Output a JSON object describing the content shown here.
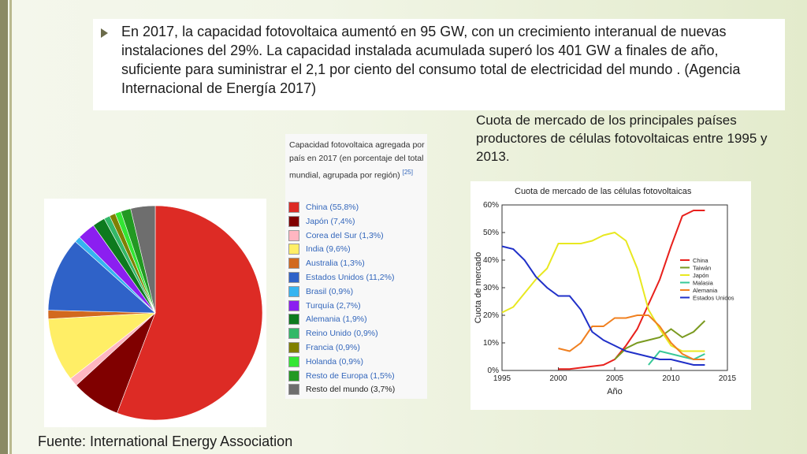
{
  "slide": {
    "bullet_text": "En 2017, la capacidad fotovoltaica aumentó en 95 GW, con un crecimiento interanual de nuevas instalaciones del 29%. La capacidad instalada acumulada superó los 401 GW a finales de año, suficiente para suministrar el 2,1 por ciento del consumo total de electricidad del mundo . (Agencia Internacional de Energía 2017)",
    "right_caption": "Cuota de mercado de los principales países productores de células fotovoltaicas entre 1995 y 2013.",
    "source": "Fuente: International Energy  Association"
  },
  "colors": {
    "accent": "#6b6b4a",
    "background": "#eef3e0"
  },
  "chart_data": [
    {
      "type": "pie",
      "title": "",
      "caption": "Capacidad fotovoltaica agregada por país en 2017 (en porcentaje del total mundial, agrupada por región)",
      "citation": "[25]",
      "slices": [
        {
          "label": "China (55,8%)",
          "value": 55.8,
          "color": "#dd2b25"
        },
        {
          "label": "Japón (7,4%)",
          "value": 7.4,
          "color": "#800000"
        },
        {
          "label": "Corea del Sur (1,3%)",
          "value": 1.3,
          "color": "#ffb6c1"
        },
        {
          "label": "India (9,6%)",
          "value": 9.6,
          "color": "#ffee66"
        },
        {
          "label": "Australia (1,3%)",
          "value": 1.3,
          "color": "#d2691e"
        },
        {
          "label": "Estados Unidos (11,2%)",
          "value": 11.2,
          "color": "#2f62c8"
        },
        {
          "label": "Brasil (0,9%)",
          "value": 0.9,
          "color": "#36b4f0"
        },
        {
          "label": "Turquía (2,7%)",
          "value": 2.7,
          "color": "#8b1ff0"
        },
        {
          "label": "Alemania (1,9%)",
          "value": 1.9,
          "color": "#0d7a1e"
        },
        {
          "label": "Reino Unido (0,9%)",
          "value": 0.9,
          "color": "#33b868"
        },
        {
          "label": "Francia (0,9%)",
          "value": 0.9,
          "color": "#808000"
        },
        {
          "label": "Holanda (0,9%)",
          "value": 0.9,
          "color": "#33e633"
        },
        {
          "label": "Resto de Europa (1,5%)",
          "value": 1.5,
          "color": "#229922"
        },
        {
          "label": "Resto del mundo (3,7%)",
          "value": 3.7,
          "color": "#6e6e6e"
        }
      ]
    },
    {
      "type": "line",
      "title": "Cuota de mercado de las células fotovoltaicas",
      "xlabel": "Año",
      "ylabel": "Cuota de mercado",
      "xlim": [
        1995,
        2015
      ],
      "ylim": [
        0,
        60
      ],
      "xticks": [
        "1995",
        "2000",
        "2005",
        "2010",
        "2015"
      ],
      "yticks": [
        "0%",
        "10%",
        "20%",
        "30%",
        "40%",
        "50%",
        "60%"
      ],
      "legend_position": "right",
      "series": [
        {
          "name": "China",
          "color": "#e8201c",
          "x": [
            2000,
            2001,
            2002,
            2003,
            2004,
            2005,
            2006,
            2007,
            2008,
            2009,
            2010,
            2011,
            2012,
            2013
          ],
          "y": [
            0.5,
            0.5,
            1,
            1.5,
            2,
            4,
            9,
            15,
            24,
            33,
            45,
            56,
            58,
            58
          ]
        },
        {
          "name": "Taiwán",
          "color": "#7a9a20",
          "x": [
            2005,
            2006,
            2007,
            2008,
            2009,
            2010,
            2011,
            2012,
            2013
          ],
          "y": [
            4,
            8,
            10,
            11,
            12,
            15,
            12,
            14,
            18
          ]
        },
        {
          "name": "Japón",
          "color": "#e8e820",
          "x": [
            1995,
            1996,
            1997,
            1998,
            1999,
            2000,
            2001,
            2002,
            2003,
            2004,
            2005,
            2006,
            2007,
            2008,
            2009,
            2010,
            2011,
            2012,
            2013
          ],
          "y": [
            21,
            23,
            28,
            33,
            37,
            46,
            46,
            46,
            47,
            49,
            50,
            47,
            37,
            22,
            15,
            9,
            7,
            7,
            7
          ]
        },
        {
          "name": "Malasia",
          "color": "#38c898",
          "x": [
            2008,
            2009,
            2010,
            2011,
            2012,
            2013
          ],
          "y": [
            2,
            7,
            6,
            5,
            4,
            6
          ]
        },
        {
          "name": "Alemania",
          "color": "#f08020",
          "x": [
            2000,
            2001,
            2002,
            2003,
            2004,
            2005,
            2006,
            2007,
            2008,
            2009,
            2010,
            2011,
            2012,
            2013
          ],
          "y": [
            8,
            7,
            10,
            16,
            16,
            19,
            19,
            20,
            20,
            16,
            10,
            6,
            4,
            4
          ]
        },
        {
          "name": "Estados Unidos",
          "color": "#2030c8",
          "x": [
            1995,
            1996,
            1997,
            1998,
            1999,
            2000,
            2001,
            2002,
            2003,
            2004,
            2005,
            2006,
            2007,
            2008,
            2009,
            2010,
            2011,
            2012,
            2013
          ],
          "y": [
            45,
            44,
            40,
            34,
            30,
            27,
            27,
            22,
            14,
            11,
            9,
            7,
            6,
            5,
            4,
            4,
            3,
            2,
            2
          ]
        }
      ]
    }
  ]
}
